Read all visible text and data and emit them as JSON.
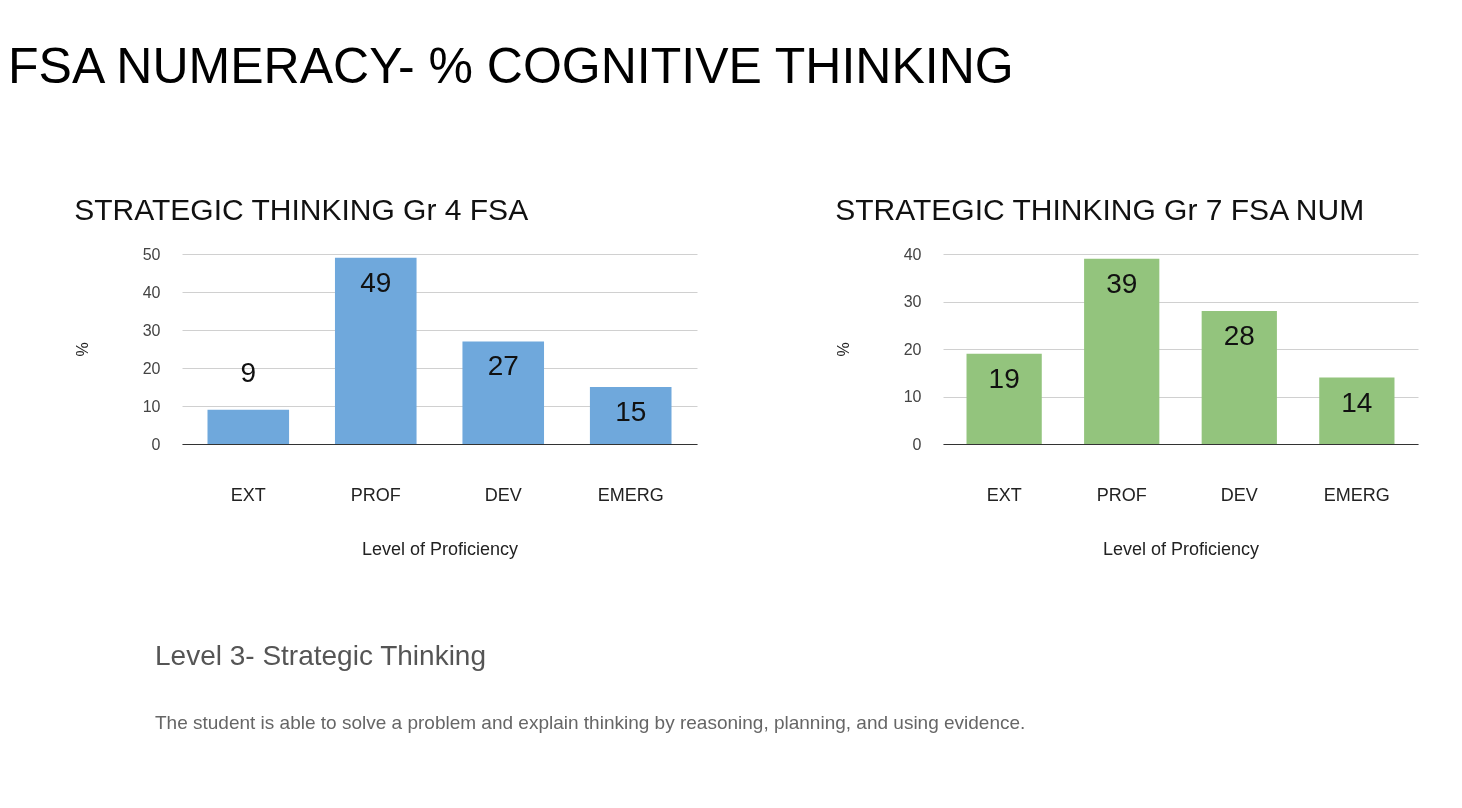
{
  "chart_data": [
    {
      "type": "other",
      "title": "FSA NUMERACY- % COGNITIVE THINKING"
    },
    {
      "type": "bar",
      "title": "STRATEGIC THINKING Gr 4 FSA",
      "xlabel": "Level of Proficiency",
      "ylabel": "%",
      "categories": [
        "EXT",
        "PROF",
        "DEV",
        "EMERG"
      ],
      "values": [
        9,
        49,
        27,
        15
      ],
      "color": "#6fa8dc",
      "ylim": [
        0,
        50
      ],
      "yticks": [
        0,
        10,
        20,
        30,
        40,
        50
      ],
      "grid": "y",
      "data_labels": true
    },
    {
      "type": "bar",
      "title": "STRATEGIC THINKING Gr 7 FSA NUM",
      "xlabel": "Level of Proficiency",
      "ylabel": "%",
      "categories": [
        "EXT",
        "PROF",
        "DEV",
        "EMERG"
      ],
      "values": [
        19,
        39,
        28,
        14
      ],
      "color": "#93c47d",
      "ylim": [
        0,
        40
      ],
      "yticks": [
        0,
        10,
        20,
        30,
        40
      ],
      "grid": "y",
      "data_labels": true
    },
    {
      "type": "other",
      "title": "Level 3- Strategic Thinking",
      "annotations": [
        "The student is able to solve a problem and explain thinking by reasoning, planning, and using evidence."
      ]
    }
  ]
}
